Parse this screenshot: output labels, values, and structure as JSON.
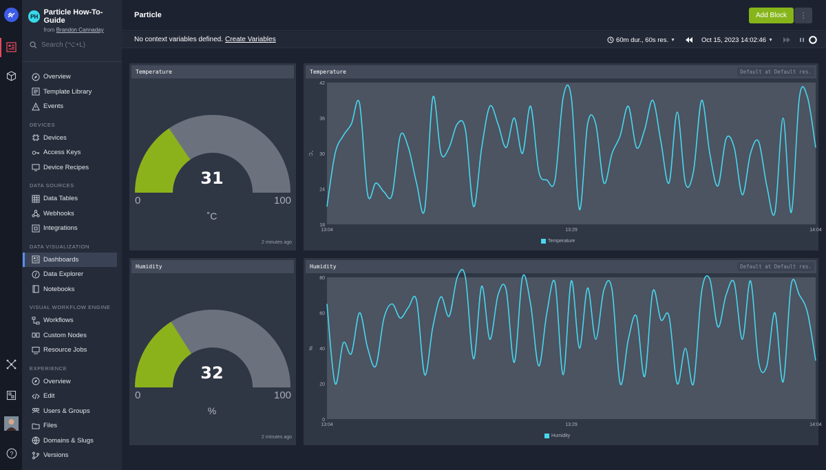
{
  "org": {
    "initials": "PH",
    "name": "Particle How-To-Guide",
    "from": "from",
    "owner": "Brandon Cannaday"
  },
  "search": {
    "placeholder": "Search (⌥+L)"
  },
  "nav": {
    "top": [
      "Overview",
      "Template Library",
      "Events"
    ],
    "devices_title": "DEVICES",
    "devices": [
      "Devices",
      "Access Keys",
      "Device Recipes"
    ],
    "data_sources_title": "DATA SOURCES",
    "data_sources": [
      "Data Tables",
      "Webhooks",
      "Integrations"
    ],
    "data_viz_title": "DATA VISUALIZATION",
    "data_viz": [
      "Dashboards",
      "Data Explorer",
      "Notebooks"
    ],
    "workflow_title": "VISUAL WORKFLOW ENGINE",
    "workflow": [
      "Workflows",
      "Custom Nodes",
      "Resource Jobs"
    ],
    "experience_title": "EXPERIENCE",
    "experience": [
      "Overview",
      "Edit",
      "Users & Groups",
      "Files",
      "Domains & Slugs",
      "Versions"
    ]
  },
  "header": {
    "title": "Particle",
    "add_block": "Add Block",
    "more": "⋮"
  },
  "context": {
    "message": "No context variables defined.",
    "link": "Create Variables",
    "duration": "60m dur., 60s res.",
    "date": "Oct 15, 2023 14:02:46"
  },
  "colors": {
    "accent_green": "#86b51a",
    "series": "#47d7ee",
    "gauge_fill": "#8cb21b",
    "gauge_bg": "#6c727d"
  },
  "panels": {
    "temp_gauge": {
      "title": "Temperature",
      "value": "31",
      "min": "0",
      "max": "100",
      "unit": "˚C",
      "updated": "2 minutes ago",
      "fraction": 0.31
    },
    "temp_chart": {
      "title": "Temperature",
      "resolution": "Default at Default res.",
      "ylabel": "˚C",
      "legend": "Temperature"
    },
    "hum_gauge": {
      "title": "Humidity",
      "value": "32",
      "min": "0",
      "max": "100",
      "unit": "%",
      "updated": "2 minutes ago",
      "fraction": 0.32
    },
    "hum_chart": {
      "title": "Humidity",
      "resolution": "Default at Default res.",
      "ylabel": "%",
      "legend": "Humidity"
    }
  },
  "chart_data": [
    {
      "type": "line",
      "title": "Temperature",
      "ylabel": "˚C",
      "x_ticks": [
        "13:04",
        "13:29",
        "14:04"
      ],
      "y_ticks": [
        "18",
        "24",
        "30",
        "36",
        "42"
      ],
      "ylim": [
        18,
        42
      ],
      "xlim": [
        0,
        60
      ],
      "series": [
        {
          "name": "Temperature",
          "points": [
            [
              0,
              21
            ],
            [
              1,
              30
            ],
            [
              2,
              33
            ],
            [
              3,
              35
            ],
            [
              4,
              38.5
            ],
            [
              5,
              23
            ],
            [
              6,
              25
            ],
            [
              7,
              23.5
            ],
            [
              8,
              23
            ],
            [
              9,
              33
            ],
            [
              10,
              31
            ],
            [
              11,
              25
            ],
            [
              12,
              20.5
            ],
            [
              13,
              39.5
            ],
            [
              14,
              30
            ],
            [
              15,
              31
            ],
            [
              16,
              35
            ],
            [
              17,
              34
            ],
            [
              18,
              21
            ],
            [
              19,
              31
            ],
            [
              20,
              38
            ],
            [
              21,
              35
            ],
            [
              22,
              31
            ],
            [
              23,
              36
            ],
            [
              24,
              30
            ],
            [
              25,
              38
            ],
            [
              26,
              27
            ],
            [
              27,
              25.5
            ],
            [
              28,
              25.5
            ],
            [
              29,
              39.5
            ],
            [
              30,
              39.5
            ],
            [
              31,
              20.5
            ],
            [
              32,
              35
            ],
            [
              33,
              35
            ],
            [
              34,
              25
            ],
            [
              35,
              30
            ],
            [
              36,
              33
            ],
            [
              37,
              38
            ],
            [
              38,
              31
            ],
            [
              39,
              34
            ],
            [
              40,
              39
            ],
            [
              41,
              32
            ],
            [
              42,
              25
            ],
            [
              43,
              37
            ],
            [
              44,
              25
            ],
            [
              45,
              27
            ],
            [
              46,
              39
            ],
            [
              47,
              30
            ],
            [
              48,
              24.5
            ],
            [
              49,
              32.5
            ],
            [
              50,
              31
            ],
            [
              51,
              23
            ],
            [
              52,
              30
            ],
            [
              53,
              32
            ],
            [
              54,
              24.5
            ],
            [
              55,
              20
            ],
            [
              56,
              36
            ],
            [
              57,
              20
            ],
            [
              58,
              39.5
            ],
            [
              59,
              39.5
            ],
            [
              60,
              31
            ]
          ]
        }
      ]
    },
    {
      "type": "line",
      "title": "Humidity",
      "ylabel": "%",
      "x_ticks": [
        "13:04",
        "13:29",
        "14:04"
      ],
      "y_ticks": [
        "0",
        "20",
        "40",
        "60",
        "80"
      ],
      "ylim": [
        0,
        80
      ],
      "xlim": [
        0,
        60
      ],
      "series": [
        {
          "name": "Humidity",
          "points": [
            [
              0,
              65
            ],
            [
              1,
              20
            ],
            [
              2,
              43
            ],
            [
              3,
              37
            ],
            [
              4,
              60
            ],
            [
              5,
              40
            ],
            [
              6,
              30
            ],
            [
              7,
              57
            ],
            [
              8,
              65
            ],
            [
              9,
              57
            ],
            [
              10,
              63
            ],
            [
              11,
              67
            ],
            [
              12,
              25
            ],
            [
              13,
              52
            ],
            [
              14,
              69
            ],
            [
              15,
              58
            ],
            [
              16,
              80
            ],
            [
              17,
              80
            ],
            [
              18,
              34
            ],
            [
              19,
              75
            ],
            [
              20,
              45
            ],
            [
              21,
              70
            ],
            [
              22,
              73
            ],
            [
              23,
              32
            ],
            [
              24,
              80
            ],
            [
              25,
              65
            ],
            [
              26,
              30
            ],
            [
              27,
              60
            ],
            [
              28,
              77
            ],
            [
              29,
              25
            ],
            [
              30,
              78
            ],
            [
              31,
              40
            ],
            [
              32,
              74
            ],
            [
              33,
              45
            ],
            [
              34,
              73
            ],
            [
              35,
              73
            ],
            [
              36,
              20
            ],
            [
              37,
              45
            ],
            [
              38,
              58
            ],
            [
              39,
              24
            ],
            [
              40,
              72
            ],
            [
              41,
              56
            ],
            [
              42,
              58
            ],
            [
              43,
              20
            ],
            [
              44,
              40
            ],
            [
              45,
              20
            ],
            [
              46,
              72
            ],
            [
              47,
              79
            ],
            [
              48,
              52
            ],
            [
              49,
              70
            ],
            [
              50,
              77
            ],
            [
              51,
              45
            ],
            [
              52,
              78
            ],
            [
              53,
              32
            ],
            [
              54,
              30
            ],
            [
              55,
              60
            ],
            [
              56,
              21
            ],
            [
              57,
              76
            ],
            [
              58,
              70
            ],
            [
              59,
              60
            ],
            [
              60,
              33
            ]
          ]
        }
      ]
    }
  ]
}
